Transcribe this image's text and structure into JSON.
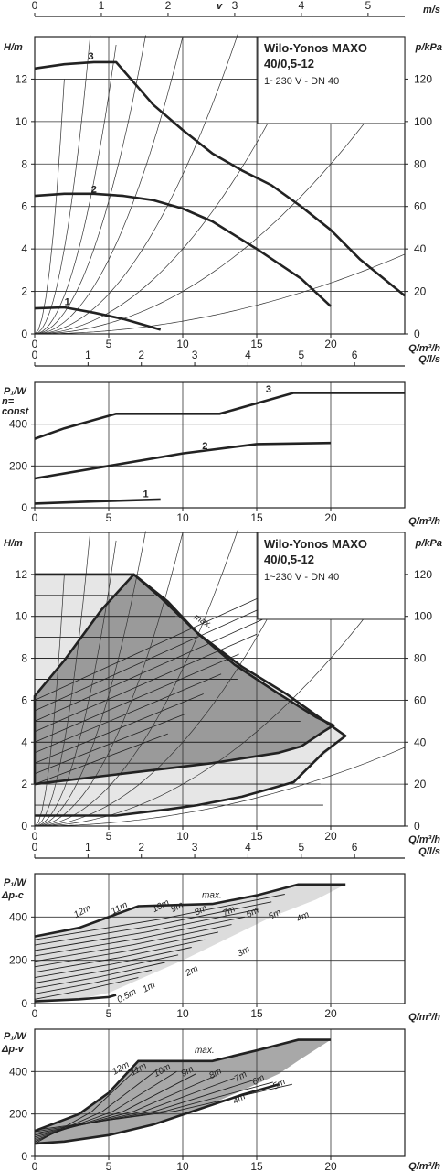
{
  "chart_data": [
    {
      "id": "hq_curves",
      "type": "line",
      "title": "Wilo-Yonos MAXO",
      "model": "40/0,5-12",
      "spec": "1~230 V - DN 40",
      "ylabel": "H/m",
      "ylabel_right": "p/kPa",
      "xlabel": "Q/m³/h",
      "xlabel_top": "m/s",
      "top_axis_letter": "v",
      "xlim": [
        0,
        25
      ],
      "ylim": [
        0,
        14
      ],
      "top_ticks": [
        "0",
        "1",
        "2",
        "3",
        "4",
        "5"
      ],
      "x_ticks": [
        "0",
        "5",
        "10",
        "15",
        "20"
      ],
      "y_ticks": [
        "0",
        "2",
        "4",
        "6",
        "8",
        "10",
        "12"
      ],
      "y_right_ticks": [
        "0",
        "20",
        "40",
        "60",
        "80",
        "100",
        "120"
      ],
      "series": [
        {
          "name": "1",
          "x": [
            0,
            2,
            4,
            6,
            8.5
          ],
          "y": [
            1.2,
            1.25,
            1.0,
            0.7,
            0.2
          ]
        },
        {
          "name": "2",
          "x": [
            0,
            2,
            4,
            6,
            8,
            10,
            12,
            15,
            18,
            20
          ],
          "y": [
            6.5,
            6.6,
            6.6,
            6.5,
            6.3,
            5.9,
            5.3,
            4.0,
            2.6,
            1.3
          ]
        },
        {
          "name": "3",
          "x": [
            0,
            2,
            4,
            5.5,
            8,
            10,
            12,
            14,
            16,
            18,
            20,
            22,
            25
          ],
          "y": [
            12.5,
            12.7,
            12.8,
            12.8,
            10.8,
            9.6,
            8.5,
            7.7,
            7.0,
            6.0,
            4.9,
            3.5,
            1.8
          ]
        }
      ]
    },
    {
      "id": "p1_curves",
      "type": "line",
      "ylabel": "P₁/W",
      "ylabel2": "n=",
      "ylabel3": "const",
      "xlabel": "Q/m³/h",
      "xlabel_top": "Q/l/s",
      "xlim": [
        0,
        25
      ],
      "ylim": [
        0,
        600
      ],
      "top_ticks": [
        "0",
        "1",
        "2",
        "3",
        "4",
        "5",
        "6"
      ],
      "x_ticks": [
        "0",
        "5",
        "10",
        "15",
        "20"
      ],
      "y_ticks": [
        "0",
        "200",
        "400"
      ],
      "series": [
        {
          "name": "1",
          "x": [
            0,
            4,
            8.5
          ],
          "y": [
            20,
            30,
            40
          ]
        },
        {
          "name": "2",
          "x": [
            0,
            5,
            10,
            15,
            20
          ],
          "y": [
            140,
            200,
            260,
            305,
            310
          ]
        },
        {
          "name": "3",
          "x": [
            0,
            2,
            5.5,
            12.5,
            17.5,
            25
          ],
          "y": [
            330,
            380,
            450,
            450,
            550,
            550
          ]
        }
      ]
    },
    {
      "id": "hq_field",
      "type": "area",
      "title": "Wilo-Yonos MAXO",
      "model": "40/0,5-12",
      "spec": "1~230 V - DN 40",
      "ylabel": "H/m",
      "ylabel_right": "p/kPa",
      "xlabel": "Q/m³/h",
      "annotation": "max.",
      "xlim": [
        0,
        25
      ],
      "ylim": [
        0,
        14
      ],
      "x_ticks": [
        "0",
        "5",
        "10",
        "15",
        "20"
      ],
      "y_ticks": [
        "0",
        "2",
        "4",
        "6",
        "8",
        "10",
        "12"
      ],
      "y_right_ticks": [
        "0",
        "20",
        "40",
        "60",
        "80",
        "100",
        "120"
      ]
    },
    {
      "id": "p1_dpc",
      "type": "line",
      "ylabel": "P₁/W",
      "ylabel2": "Δp-c",
      "xlabel": "Q/m³/h",
      "xlabel_top": "Q/l/s",
      "annotation": "max.",
      "xlim": [
        0,
        25
      ],
      "ylim": [
        0,
        600
      ],
      "top_ticks": [
        "0",
        "1",
        "2",
        "3",
        "4",
        "5",
        "6"
      ],
      "x_ticks": [
        "0",
        "5",
        "10",
        "15",
        "20"
      ],
      "y_ticks": [
        "0",
        "200",
        "400"
      ],
      "setpoint_labels": [
        "12m",
        "11m",
        "10m",
        "9m",
        "8m",
        "7m",
        "6m",
        "5m",
        "4m",
        "3m",
        "2m",
        "1m",
        "0.5m"
      ]
    },
    {
      "id": "p1_dpv",
      "type": "line",
      "ylabel": "P₁/W",
      "ylabel2": "Δp-v",
      "xlabel": "Q/m³/h",
      "annotation": "max.",
      "xlim": [
        0,
        25
      ],
      "ylim": [
        0,
        600
      ],
      "x_ticks": [
        "0",
        "5",
        "10",
        "15",
        "20"
      ],
      "y_ticks": [
        "0",
        "200",
        "400"
      ],
      "setpoint_labels": [
        "12m",
        "11m",
        "10m",
        "9m",
        "8m",
        "7m",
        "6m",
        "5m",
        "4m"
      ]
    }
  ]
}
